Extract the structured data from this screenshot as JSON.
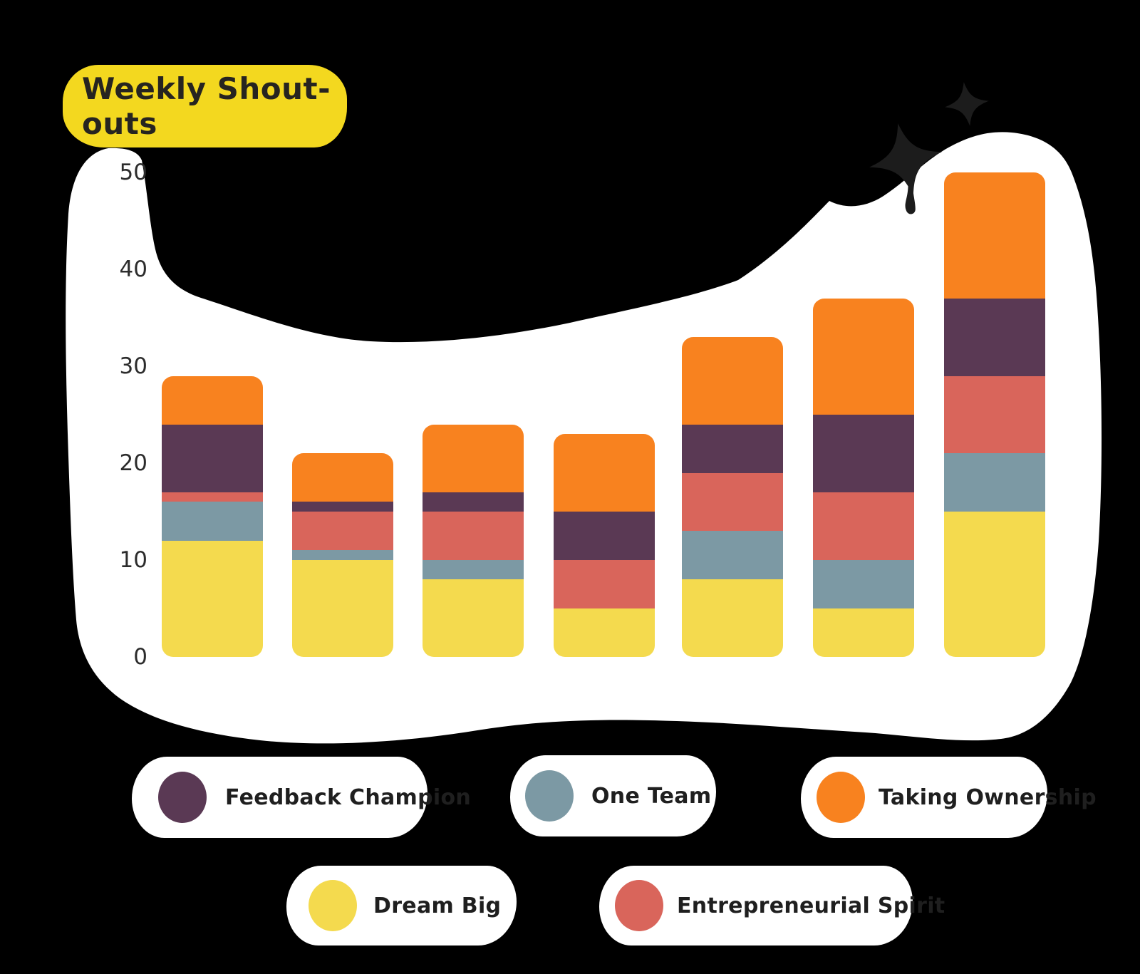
{
  "title": {
    "label": "Weekly Shout-outs"
  },
  "colors": {
    "background": "#000000",
    "blob": "#ffffff",
    "badge": "#f3d81f",
    "badge_text": "#262420",
    "axis_text": "#2c2c2c",
    "legend_text": "#1f1f1f",
    "sparkle": "#1c1c1c"
  },
  "y_axis": {
    "labels": [
      "50",
      "40",
      "30",
      "20",
      "10",
      "0"
    ]
  },
  "chart_data": {
    "type": "bar",
    "stacked": true,
    "title": "Weekly Shout-outs",
    "xlabel": "",
    "ylabel": "",
    "grid": false,
    "legend_position": "bottom",
    "ylim": [
      0,
      50
    ],
    "yticks": [
      0,
      10,
      20,
      30,
      40,
      50
    ],
    "bar_count": 7,
    "series": [
      {
        "name": "Dream Big",
        "color": "#f4da4e",
        "values": [
          12,
          10,
          8,
          5,
          8,
          5,
          15
        ]
      },
      {
        "name": "One Team",
        "color": "#7c99a4",
        "values": [
          4,
          1,
          2,
          0,
          5,
          5,
          6
        ]
      },
      {
        "name": "Entrepreneurial Spirit",
        "color": "#d9655b",
        "values": [
          1,
          4,
          5,
          5,
          6,
          7,
          8
        ]
      },
      {
        "name": "Feedback Champion",
        "color": "#5a3954",
        "values": [
          7,
          1,
          2,
          5,
          5,
          8,
          8
        ]
      },
      {
        "name": "Taking Ownership",
        "color": "#f8821f",
        "values": [
          5,
          5,
          7,
          8,
          9,
          12,
          13
        ]
      }
    ],
    "totals": [
      29,
      21,
      24,
      23,
      33,
      37,
      50
    ]
  },
  "legend": {
    "items": [
      {
        "label": "Feedback Champion",
        "color": "#5a3954"
      },
      {
        "label": "One Team",
        "color": "#7c99a4"
      },
      {
        "label": "Taking Ownership",
        "color": "#f8821f"
      },
      {
        "label": "Dream Big",
        "color": "#f4da4e"
      },
      {
        "label": "Entrepreneurial Spirit",
        "color": "#d9655b"
      }
    ]
  }
}
